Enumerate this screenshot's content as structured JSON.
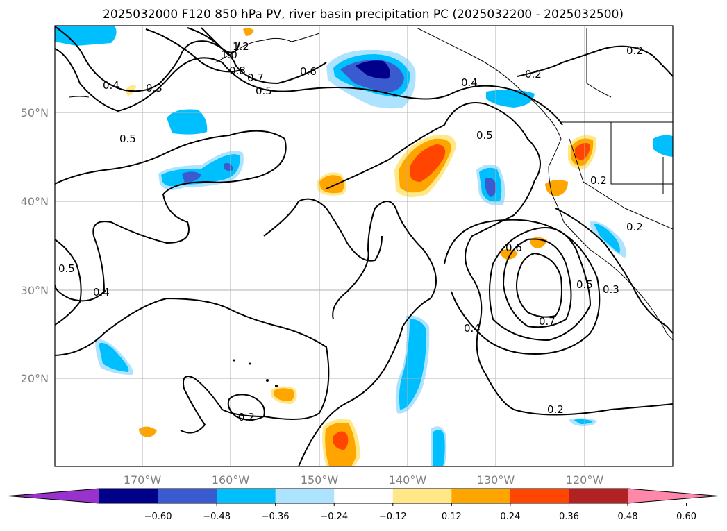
{
  "title": "2025032000 F120 850 hPa PV, river basin precipitation PC (2025032200 - 2025032500)",
  "lat_labels": [
    "50°N",
    "40°N",
    "30°N",
    "20°N"
  ],
  "lon_labels": [
    "170°W",
    "160°W",
    "150°W",
    "140°W",
    "130°W",
    "120°W"
  ],
  "colorbar": {
    "colors": [
      "#9932cc",
      "#00008b",
      "#3a5bd0",
      "#00bfff",
      "#aee3ff",
      "#ffffff",
      "#ffe885",
      "#ffa500",
      "#ff4500",
      "#b22222",
      "#ff88aa"
    ],
    "ticks": [
      "−0.60",
      "−0.48",
      "−0.36",
      "−0.24",
      "−0.12",
      "0.12",
      "0.24",
      "0.36",
      "0.48",
      "0.60"
    ]
  },
  "contour_labels": [
    "1.2",
    "1.0",
    "0.8",
    "0.7",
    "0.6",
    "0.5",
    "0.4",
    "0.3",
    "0.5",
    "0.5",
    "0.4",
    "0.2",
    "0.2",
    "0.2",
    "0.2",
    "0.3",
    "0.5",
    "0.6",
    "0.7",
    "0.4",
    "0.2",
    "0.2",
    "0.5",
    "0.4"
  ],
  "icons": {
    "colorbar": "colorbar",
    "map": "precipitation-pv-map"
  }
}
